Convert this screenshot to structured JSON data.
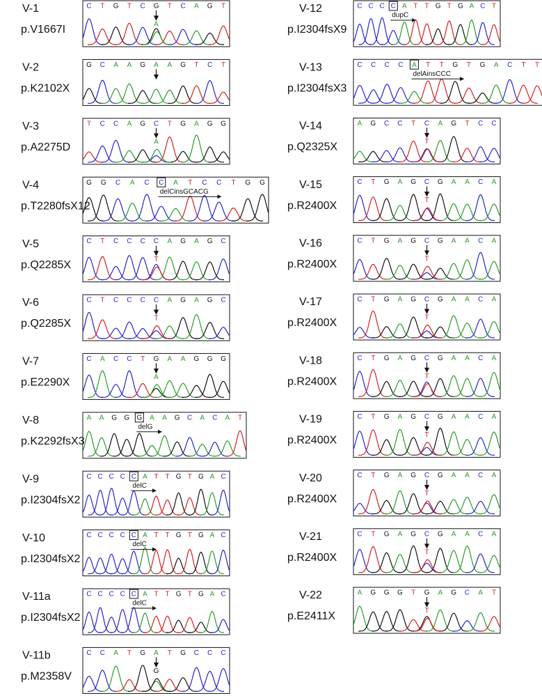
{
  "panels": [
    {
      "id": "V-1",
      "protein": "p.V1667I",
      "before": [
        "C",
        "T",
        "G",
        "T",
        "C"
      ],
      "site": "G",
      "after": [
        "T",
        "C",
        "A",
        "G",
        "T"
      ],
      "marker": "arrow",
      "alt": "A"
    },
    {
      "id": "V-2",
      "protein": "p.K2102X",
      "before": [
        "G",
        "C",
        "A",
        "A",
        "G"
      ],
      "site": "A",
      "after": [
        "A",
        "G",
        "T",
        "C",
        "T"
      ],
      "marker": "arrow"
    },
    {
      "id": "V-3",
      "protein": "p.A2275D",
      "before": [
        "T",
        "C",
        "C",
        "A",
        "G"
      ],
      "site": "C",
      "after": [
        "T",
        "G",
        "A",
        "G",
        "G"
      ],
      "marker": "arrow",
      "alt": "A"
    },
    {
      "id": "V-4",
      "protein": "p.T2280fsX12",
      "before": [
        "G",
        "G",
        "C",
        "A",
        "C"
      ],
      "site": "C",
      "after": [
        "A",
        "T",
        "C",
        "C",
        "T",
        "G",
        "G"
      ],
      "marker": "box",
      "note": "delCinsGCACG"
    },
    {
      "id": "V-5",
      "protein": "p.Q2285X",
      "before": [
        "C",
        "T",
        "C",
        "C",
        "C"
      ],
      "site": "C",
      "after": [
        "A",
        "G",
        "A",
        "G",
        "C"
      ],
      "marker": "arrow",
      "alt": "T"
    },
    {
      "id": "V-6",
      "protein": "p.Q2285X",
      "before": [
        "C",
        "T",
        "C",
        "C",
        "C"
      ],
      "site": "C",
      "after": [
        "A",
        "G",
        "A",
        "G",
        "C"
      ],
      "marker": "arrow",
      "alt": "T"
    },
    {
      "id": "V-7",
      "protein": "p.E2290X",
      "before": [
        "C",
        "A",
        "C",
        "C",
        "T"
      ],
      "site": "G",
      "after": [
        "A",
        "A",
        "G",
        "G",
        "G"
      ],
      "marker": "arrow",
      "alt": "A"
    },
    {
      "id": "V-8",
      "protein": "p.K2292fsX3",
      "before": [
        "A",
        "A",
        "G",
        "G"
      ],
      "site": "G",
      "after": [
        "A",
        "A",
        "G",
        "C",
        "A",
        "C",
        "A",
        "T"
      ],
      "marker": "box",
      "note": "delG"
    },
    {
      "id": "V-9",
      "protein": "p.I2304fsX2",
      "before": [
        "C",
        "C",
        "C",
        "C"
      ],
      "site": "C",
      "after": [
        "A",
        "T",
        "T",
        "G",
        "T",
        "G",
        "A",
        "C"
      ],
      "marker": "box",
      "note": "delC"
    },
    {
      "id": "V-10",
      "protein": "p.I2304fsX2",
      "before": [
        "C",
        "C",
        "C",
        "C"
      ],
      "site": "C",
      "after": [
        "A",
        "T",
        "T",
        "G",
        "T",
        "G",
        "A",
        "C"
      ],
      "marker": "box",
      "note": "delC"
    },
    {
      "id": "V-11a",
      "protein": "p.I2304fsX2",
      "before": [
        "C",
        "C",
        "C",
        "C"
      ],
      "site": "C",
      "after": [
        "A",
        "T",
        "T",
        "G",
        "T",
        "G",
        "A",
        "C"
      ],
      "marker": "box",
      "note": "delC"
    },
    {
      "id": "V-11b",
      "protein": "p.M2358V",
      "before": [
        "C",
        "C",
        "A",
        "T",
        "G"
      ],
      "site": "A",
      "after": [
        "T",
        "G",
        "C",
        "C",
        "C"
      ],
      "marker": "arrow",
      "alt": "G"
    },
    {
      "id": "V-12",
      "protein": "p.I2304fsX9",
      "before": [
        "C",
        "C",
        "C"
      ],
      "site": "C",
      "after": [
        "A",
        "T",
        "T",
        "G",
        "T",
        "G",
        "A",
        "C",
        "T"
      ],
      "marker": "box",
      "note": "dupC"
    },
    {
      "id": "V-13",
      "protein": "p.I2304fsX3",
      "before": [
        "C",
        "C",
        "C",
        "C"
      ],
      "site": "A",
      "after": [
        "T",
        "T",
        "G",
        "T",
        "G",
        "A",
        "C",
        "T",
        "T"
      ],
      "marker": "box",
      "note": "delAinsCCC"
    },
    {
      "id": "V-14",
      "protein": "p.Q2325X",
      "before": [
        "A",
        "G",
        "C",
        "C",
        "T"
      ],
      "site": "C",
      "after": [
        "A",
        "G",
        "T",
        "C",
        "C"
      ],
      "marker": "arrow",
      "alt": "T"
    },
    {
      "id": "V-15",
      "protein": "p.R2400X",
      "before": [
        "C",
        "T",
        "G",
        "A",
        "G"
      ],
      "site": "C",
      "after": [
        "G",
        "A",
        "A",
        "C",
        "A"
      ],
      "marker": "arrow",
      "alt": "T"
    },
    {
      "id": "V-16",
      "protein": "p.R2400X",
      "before": [
        "C",
        "T",
        "G",
        "A",
        "G"
      ],
      "site": "C",
      "after": [
        "G",
        "A",
        "A",
        "C",
        "A"
      ],
      "marker": "arrow",
      "alt": "T"
    },
    {
      "id": "V-17",
      "protein": "p.R2400X",
      "before": [
        "C",
        "T",
        "G",
        "A",
        "G"
      ],
      "site": "C",
      "after": [
        "G",
        "A",
        "A",
        "C",
        "A"
      ],
      "marker": "arrow",
      "alt": "T"
    },
    {
      "id": "V-18",
      "protein": "p.R2400X",
      "before": [
        "C",
        "T",
        "G",
        "A",
        "G"
      ],
      "site": "C",
      "after": [
        "G",
        "A",
        "A",
        "C",
        "A"
      ],
      "marker": "arrow",
      "alt": "T"
    },
    {
      "id": "V-19",
      "protein": "p.R2400X",
      "before": [
        "C",
        "T",
        "G",
        "A",
        "G"
      ],
      "site": "C",
      "after": [
        "G",
        "A",
        "A",
        "C",
        "A"
      ],
      "marker": "arrow",
      "alt": "T"
    },
    {
      "id": "V-20",
      "protein": "p.R2400X",
      "before": [
        "C",
        "T",
        "G",
        "A",
        "G"
      ],
      "site": "C",
      "after": [
        "G",
        "A",
        "A",
        "C",
        "A"
      ],
      "marker": "arrow",
      "alt": "T"
    },
    {
      "id": "V-21",
      "protein": "p.R2400X",
      "before": [
        "C",
        "T",
        "G",
        "A",
        "G"
      ],
      "site": "C",
      "after": [
        "G",
        "A",
        "A",
        "C",
        "A"
      ],
      "marker": "arrow",
      "alt": "T"
    },
    {
      "id": "V-22",
      "protein": "p.E2411X",
      "before": [
        "A",
        "G",
        "G",
        "G",
        "T"
      ],
      "site": "G",
      "after": [
        "A",
        "G",
        "C",
        "A",
        "T"
      ],
      "marker": "arrow",
      "alt": "T"
    }
  ]
}
